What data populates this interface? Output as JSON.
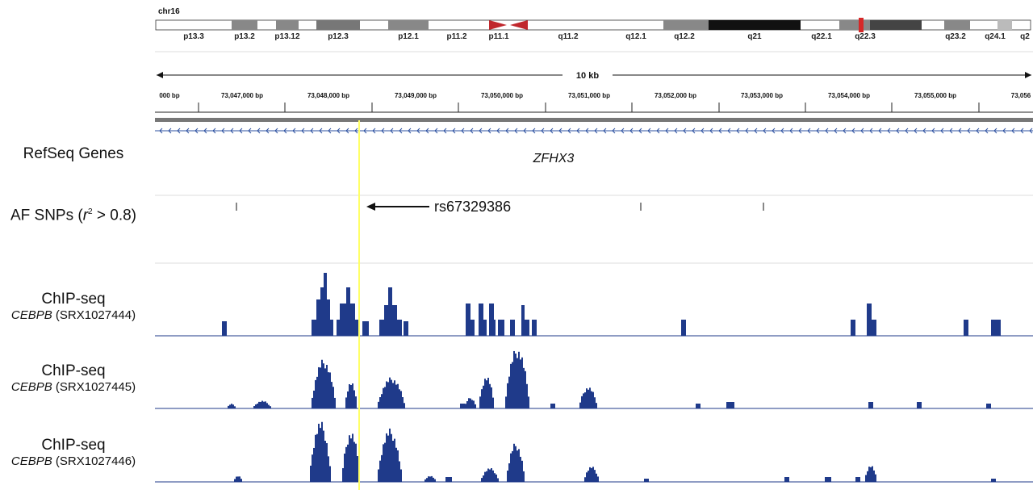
{
  "chromosome": {
    "name": "chr16",
    "bands": [
      "p13.3",
      "p13.2",
      "p13.12",
      "p12.3",
      "p12.1",
      "p11.2",
      "p11.1",
      "q11.2",
      "q12.1",
      "q12.2",
      "q21",
      "q22.1",
      "q22.3",
      "q23.2",
      "q24.1",
      "q2"
    ]
  },
  "ruler": {
    "span_label": "10 kb",
    "ticks": [
      "000 bp",
      "73,047,000 bp",
      "73,048,000 bp",
      "73,049,000 bp",
      "73,050,000 bp",
      "73,051,000 bp",
      "73,052,000 bp",
      "73,053,000 bp",
      "73,054,000 bp",
      "73,055,000 bp",
      "73,056"
    ]
  },
  "tracks": {
    "refseq": {
      "label": "RefSeq Genes",
      "gene_name": "ZFHX3"
    },
    "snps": {
      "label_prefix": "AF SNPs (",
      "label_r": "r",
      "label_sup": "2",
      "label_suffix": " > 0.8)",
      "annotation": "rs67329386"
    },
    "chip1": {
      "title": "ChIP-seq",
      "gene": "CEBPB",
      "accession": " (SRX1027444)"
    },
    "chip2": {
      "title": "ChIP-seq",
      "gene": "CEBPB",
      "accession": " (SRX1027445)"
    },
    "chip3": {
      "title": "ChIP-seq",
      "gene": "CEBPB",
      "accession": " (SRX1027446)"
    }
  },
  "colors": {
    "signal": "#1f3a8a",
    "highlight": "#ffff66",
    "centromere": "#c0282d",
    "ideogram_dark": "#777777",
    "ideogram_black": "#111111"
  }
}
